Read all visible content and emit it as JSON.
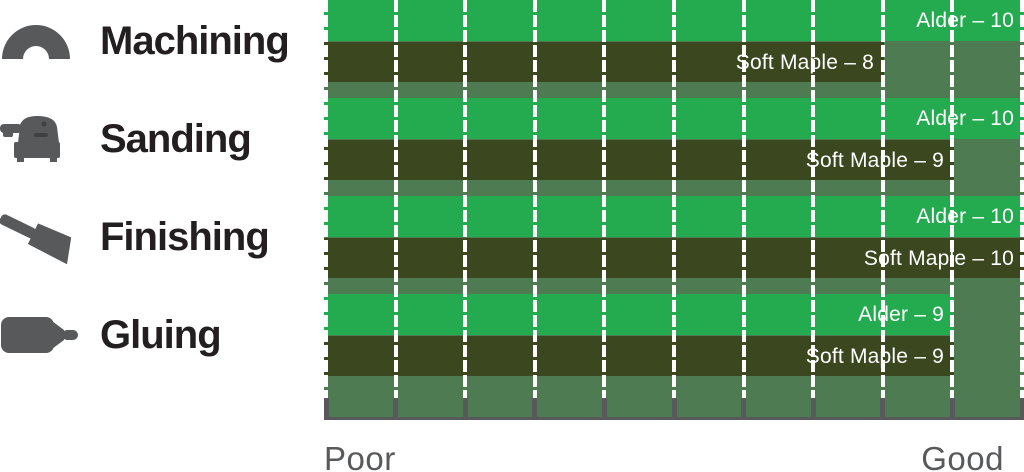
{
  "colors": {
    "alder_bar": "#24ab4f",
    "soft_maple_bar": "#3b471f",
    "plot_background": "#4e7b52",
    "gridline": "#ffffff",
    "axis_gray": "#58595b",
    "category_text": "#231f20",
    "icon_gray": "#58595b",
    "bar_label_text": "#ffffff"
  },
  "chart_data": {
    "type": "bar",
    "orientation": "horizontal",
    "title": "",
    "categories": [
      "Machining",
      "Sanding",
      "Finishing",
      "Gluing"
    ],
    "series": [
      {
        "name": "Alder",
        "color": "#24ab4f",
        "values": [
          10,
          10,
          10,
          9
        ]
      },
      {
        "name": "Soft Maple",
        "color": "#3b471f",
        "values": [
          8,
          9,
          10,
          9
        ]
      }
    ],
    "bar_labels": [
      [
        "Alder – 10",
        "Soft Maple – 8"
      ],
      [
        "Alder – 10",
        "Soft Maple – 9"
      ],
      [
        "Alder – 10",
        "Soft Maple – 10"
      ],
      [
        "Alder – 9",
        "Soft Maple – 9"
      ]
    ],
    "xlim": [
      0,
      10
    ],
    "tick_interval": 1,
    "gridlines": {
      "style": "dashed",
      "color": "#ffffff"
    },
    "legend_position": "left-category-icons",
    "axis_labels": {
      "min": "Poor",
      "max": "Good"
    }
  },
  "category_icons": [
    {
      "category": "Machining",
      "icon": "moulding-arch-icon"
    },
    {
      "category": "Sanding",
      "icon": "orbital-sander-icon"
    },
    {
      "category": "Finishing",
      "icon": "paint-brush-icon"
    },
    {
      "category": "Gluing",
      "icon": "glue-bottle-icon"
    }
  ]
}
